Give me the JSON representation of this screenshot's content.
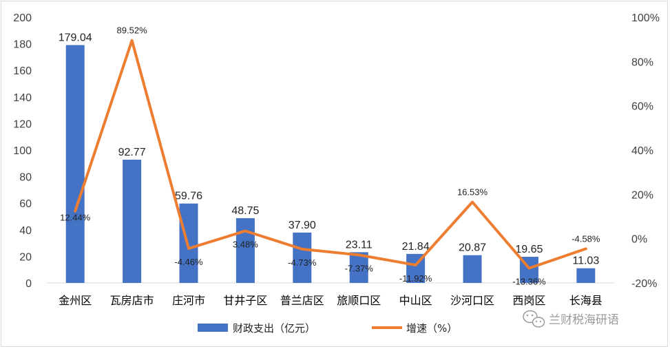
{
  "chart_data": {
    "type": "bar+line",
    "categories": [
      "金州区",
      "瓦房店市",
      "庄河市",
      "甘井子区",
      "普兰店区",
      "旅顺口区",
      "中山区",
      "沙河口区",
      "西岗区",
      "长海县"
    ],
    "series": [
      {
        "name": "财政支出（亿元）",
        "type": "bar",
        "axis": "left",
        "color": "#4472C4",
        "values": [
          179.04,
          92.77,
          59.76,
          48.75,
          37.9,
          23.11,
          21.84,
          20.87,
          19.65,
          11.03
        ],
        "labels": [
          "179.04",
          "92.77",
          "59.76",
          "48.75",
          "37.90",
          "23.11",
          "21.84",
          "20.87",
          "19.65",
          "11.03"
        ]
      },
      {
        "name": "增速（%）",
        "type": "line",
        "axis": "right",
        "color": "#ED7D31",
        "values": [
          12.44,
          89.52,
          -4.46,
          3.48,
          -4.73,
          -7.37,
          -11.92,
          16.53,
          -13.36,
          -4.58
        ],
        "labels": [
          "12.44%",
          "89.52%",
          "-4.46%",
          "3.48%",
          "-4.73%",
          "-7.37%",
          "-11.92%",
          "16.53%",
          "-13.36%",
          "-4.58%"
        ]
      }
    ],
    "y_left": {
      "min": 0,
      "max": 200,
      "ticks": [
        "0",
        "20",
        "40",
        "60",
        "80",
        "100",
        "120",
        "140",
        "160",
        "180",
        "200"
      ]
    },
    "y_right": {
      "min": -20,
      "max": 100,
      "ticks": [
        "-20%",
        "0%",
        "20%",
        "40%",
        "60%",
        "80%",
        "100%"
      ]
    },
    "grid": false,
    "legend": {
      "position": "bottom",
      "bar_label": "财政支出（亿元）",
      "line_label": "增速（%）"
    }
  },
  "watermark": {
    "text": "兰财税海研语",
    "icon": "wechat-icon"
  }
}
